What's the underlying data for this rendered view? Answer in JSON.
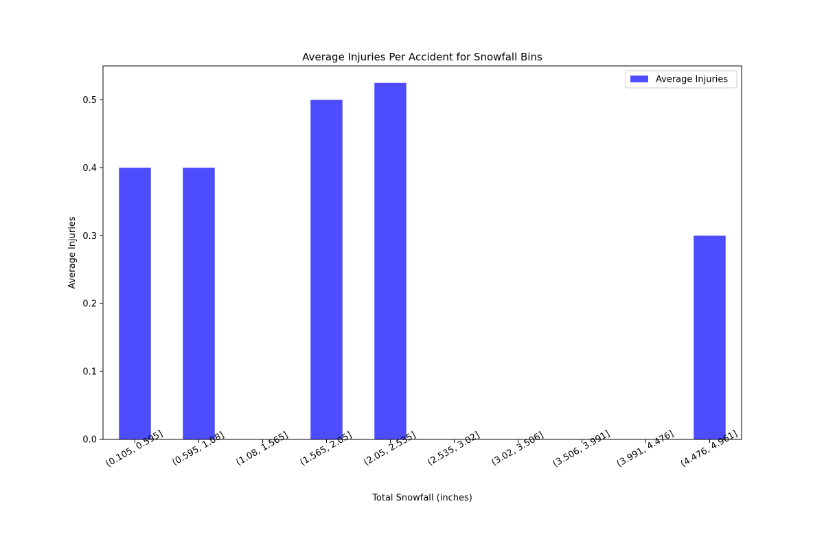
{
  "chart_data": {
    "type": "bar",
    "title": "Average Injuries Per Accident for Snowfall Bins",
    "xlabel": "Total Snowfall (inches)",
    "ylabel": "Average Injuries",
    "categories": [
      "(0.105, 0.595]",
      "(0.595, 1.08]",
      "(1.08, 1.565]",
      "(1.565, 2.05]",
      "(2.05, 2.535]",
      "(2.535, 3.02]",
      "(3.02, 3.506]",
      "(3.506, 3.991]",
      "(3.991, 4.476]",
      "(4.476, 4.961]"
    ],
    "series": [
      {
        "name": "Average Injuries",
        "color": "#4d4dff",
        "values": [
          0.4,
          0.4,
          0,
          0.5,
          0.525,
          0,
          0,
          0,
          0,
          0.3
        ]
      }
    ],
    "ylim": [
      0,
      0.55
    ],
    "yticks": [
      0.0,
      0.1,
      0.2,
      0.3,
      0.4,
      0.5
    ],
    "ytick_labels": [
      "0.0",
      "0.1",
      "0.2",
      "0.3",
      "0.4",
      "0.5"
    ],
    "grid": false,
    "legend_position": "top-right",
    "xtick_rotation_deg": -30
  }
}
